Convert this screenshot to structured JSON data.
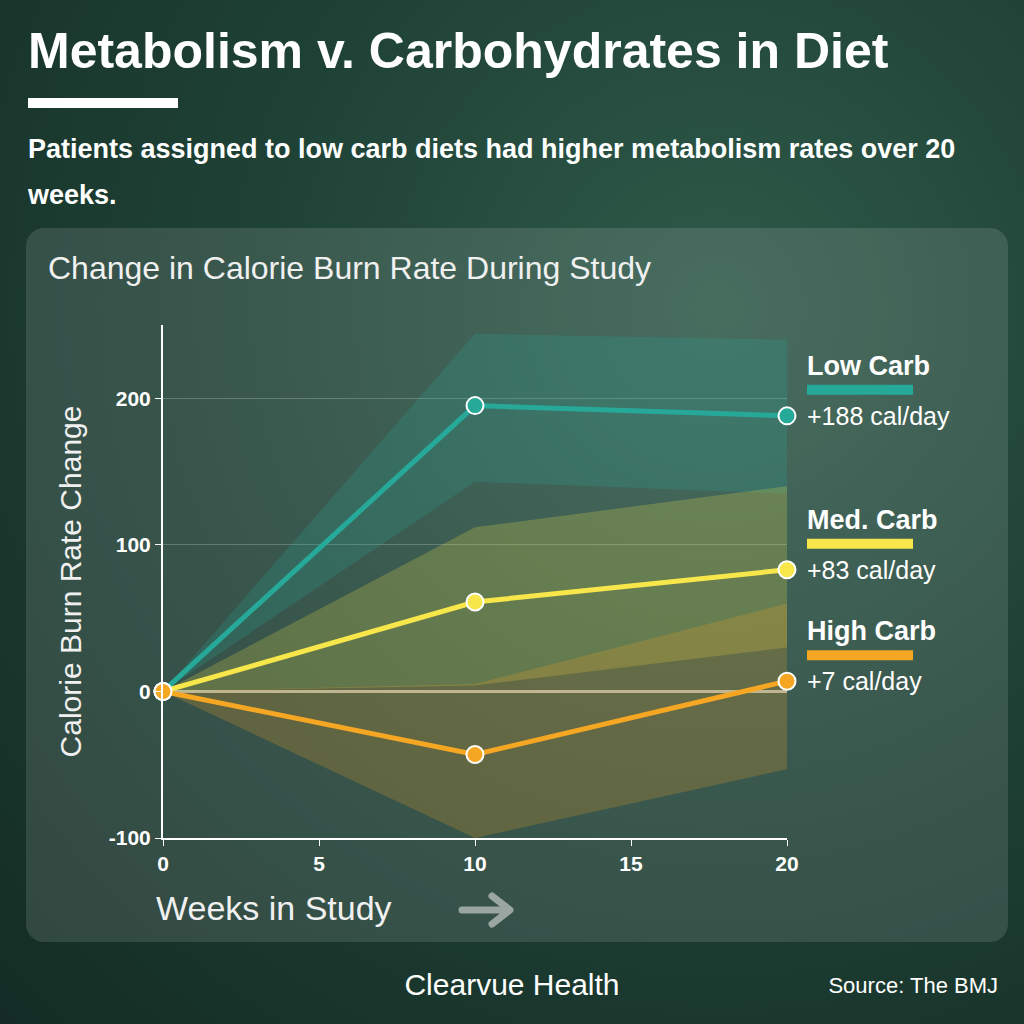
{
  "chart_data": {
    "type": "line",
    "title": "Metabolism v. Carbohydrates in Diet",
    "subtitle": "Patients assigned to low carb diets had higher metabolism rates over 20 weeks.",
    "chart_title": "Change in Calorie Burn Rate During Study",
    "x_label": "Weeks in Study",
    "y_label": "Calorie Burn Rate Change",
    "x": [
      0,
      10,
      20
    ],
    "xlim": [
      0,
      20
    ],
    "xticks": [
      0,
      5,
      10,
      15,
      20
    ],
    "ylim": [
      -100,
      250
    ],
    "yticks": [
      -100,
      0,
      100,
      200
    ],
    "grid": true,
    "data_labels": true,
    "marker": "circle",
    "series": [
      {
        "name": "Low Carb",
        "color": "#27a99a",
        "values": [
          0,
          195,
          188
        ],
        "value_labels": [
          null,
          null,
          "+188 cal/day"
        ],
        "lower": [
          0,
          143,
          135
        ],
        "upper": [
          0,
          244,
          240
        ]
      },
      {
        "name": "Med. Carb",
        "color": "#f7e74a",
        "values": [
          0,
          61,
          83
        ],
        "value_labels": [
          null,
          null,
          "+83 cal/day"
        ],
        "lower": [
          0,
          4,
          30
        ],
        "upper": [
          0,
          112,
          140
        ]
      },
      {
        "name": "High Carb",
        "color": "#f5a623",
        "values": [
          0,
          -43,
          7
        ],
        "value_labels": [
          null,
          null,
          "+7 cal/day"
        ],
        "lower": [
          0,
          -100,
          -53
        ],
        "upper": [
          0,
          5,
          60
        ]
      }
    ],
    "brand": "Clearvue Health",
    "source": "Source: The BMJ"
  }
}
